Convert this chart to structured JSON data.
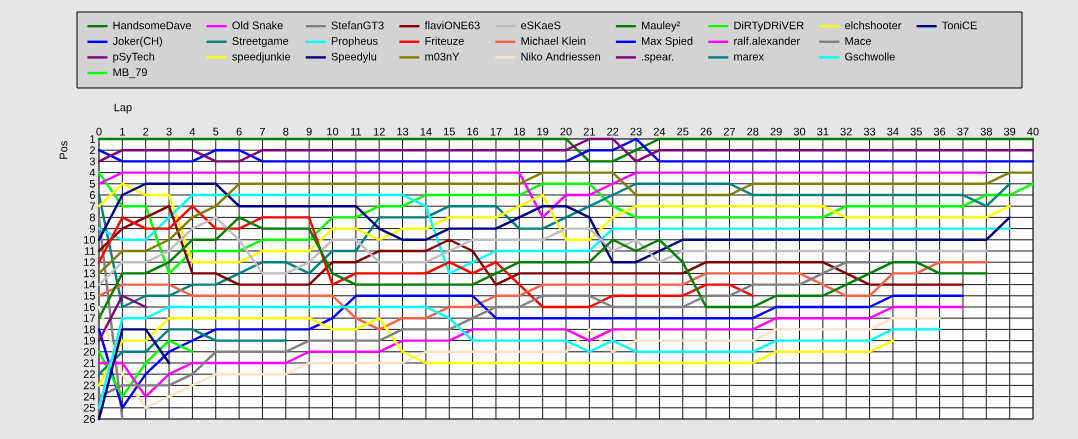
{
  "chart_data": {
    "type": "line",
    "xlabel": "Lap",
    "ylabel": "Pos",
    "x": [
      0,
      1,
      2,
      3,
      4,
      5,
      6,
      7,
      8,
      9,
      10,
      11,
      12,
      13,
      14,
      15,
      16,
      17,
      18,
      19,
      20,
      21,
      22,
      23,
      24,
      25,
      26,
      27,
      28,
      29,
      30,
      31,
      32,
      33,
      34,
      35,
      36,
      37,
      38,
      39,
      40
    ],
    "xlim": [
      0,
      40
    ],
    "ylim": [
      26,
      1
    ],
    "xticks": [
      0,
      1,
      2,
      3,
      4,
      5,
      6,
      7,
      8,
      9,
      10,
      11,
      12,
      13,
      14,
      15,
      16,
      17,
      18,
      19,
      20,
      21,
      22,
      23,
      24,
      25,
      26,
      27,
      28,
      29,
      30,
      31,
      32,
      33,
      34,
      35,
      36,
      37,
      38,
      39,
      40
    ],
    "yticks": [
      1,
      2,
      3,
      4,
      5,
      6,
      7,
      8,
      9,
      10,
      11,
      12,
      13,
      14,
      15,
      16,
      17,
      18,
      19,
      20,
      21,
      22,
      23,
      24,
      25,
      26
    ],
    "grid": true,
    "legend": "top",
    "series": [
      {
        "name": "HandsomeDave",
        "color": "#008000",
        "values": [
          1,
          1,
          1,
          1,
          1,
          1,
          1,
          1,
          1,
          1,
          1,
          1,
          1,
          1,
          1,
          1,
          1,
          1,
          1,
          1,
          1,
          3,
          3,
          2,
          1,
          1,
          1,
          1,
          1,
          1,
          1,
          1,
          1,
          1,
          1,
          1,
          1,
          1,
          1,
          1,
          1
        ]
      },
      {
        "name": "Joker(CH)",
        "color": "#0000ff",
        "values": [
          2,
          3,
          3,
          3,
          3,
          2,
          2,
          3,
          3,
          3,
          3,
          3,
          3,
          3,
          3,
          3,
          3,
          3,
          3,
          3,
          3,
          2,
          2,
          1,
          3,
          3,
          3,
          3,
          3,
          3,
          3,
          3,
          3,
          3,
          3,
          3,
          3,
          3,
          3,
          3,
          3
        ]
      },
      {
        "name": "pSyTech",
        "color": "#800080",
        "values": [
          3,
          2,
          2,
          2,
          2,
          3,
          3,
          2,
          2,
          2,
          2,
          2,
          2,
          2,
          2,
          2,
          2,
          2,
          2,
          2,
          2,
          1,
          1,
          3,
          2,
          2,
          2,
          2,
          2,
          2,
          2,
          2,
          2,
          2,
          2,
          2,
          2,
          2,
          2,
          2,
          2
        ]
      },
      {
        "name": "MB_79",
        "color": "#00ff00",
        "values": [
          4,
          7,
          7,
          13,
          11,
          11,
          11,
          10,
          10,
          10,
          8,
          8,
          7,
          7,
          6,
          6,
          6,
          6,
          6,
          5,
          5,
          5,
          7,
          8,
          8,
          8,
          8,
          8,
          8,
          8,
          8,
          8,
          7,
          7,
          7,
          7,
          7,
          7,
          6,
          6,
          5
        ]
      },
      {
        "name": "Old Snake",
        "color": "#ff00ff",
        "values": [
          5,
          4,
          4,
          4,
          4,
          4,
          4,
          4,
          4,
          4,
          4,
          4,
          4,
          4,
          4,
          4,
          4,
          4,
          4,
          8,
          6,
          6,
          5,
          4,
          4,
          4,
          4,
          4,
          4,
          4,
          4,
          4,
          4,
          4,
          4,
          4,
          4,
          4,
          4,
          null,
          null
        ]
      },
      {
        "name": "Streetgame",
        "color": "#008080",
        "values": [
          6,
          16,
          15,
          15,
          14,
          14,
          13,
          12,
          12,
          13,
          11,
          11,
          8,
          8,
          8,
          7,
          7,
          7,
          9,
          9,
          8,
          7,
          6,
          5,
          5,
          5,
          5,
          5,
          6,
          6,
          6,
          6,
          6,
          6,
          6,
          6,
          6,
          6,
          7,
          5,
          null
        ]
      },
      {
        "name": "speedjunkie",
        "color": "#ffff00",
        "values": [
          7,
          5,
          6,
          6,
          12,
          12,
          12,
          11,
          11,
          11,
          9,
          9,
          10,
          9,
          9,
          8,
          8,
          8,
          7,
          6,
          10,
          10,
          8,
          7,
          7,
          7,
          7,
          7,
          7,
          7,
          7,
          7,
          8,
          8,
          8,
          8,
          8,
          8,
          8,
          7,
          null
        ]
      },
      {
        "name": "StefanGT3",
        "color": "#808080",
        "values": [
          8,
          26,
          null,
          null,
          null,
          null,
          null,
          null,
          null,
          null,
          null,
          null,
          null,
          null,
          null,
          null,
          null,
          null,
          null,
          null,
          null,
          null,
          null,
          null,
          null,
          null,
          null,
          null,
          null,
          null,
          null,
          null,
          null,
          null,
          null,
          null,
          null,
          null,
          null,
          null,
          null
        ]
      },
      {
        "name": "Propheus",
        "color": "#00ffff",
        "values": [
          9,
          10,
          10,
          8,
          6,
          6,
          6,
          6,
          6,
          6,
          6,
          6,
          6,
          6,
          7,
          13,
          12,
          11,
          11,
          11,
          11,
          11,
          9,
          9,
          9,
          9,
          9,
          9,
          9,
          9,
          9,
          9,
          9,
          9,
          9,
          9,
          9,
          9,
          9,
          9,
          null
        ]
      },
      {
        "name": "Speedylu",
        "color": "#000080",
        "values": [
          10,
          6,
          5,
          5,
          5,
          5,
          7,
          7,
          7,
          7,
          7,
          7,
          9,
          10,
          10,
          9,
          9,
          9,
          8,
          7,
          7,
          8,
          12,
          12,
          11,
          10,
          10,
          10,
          10,
          10,
          10,
          10,
          10,
          10,
          10,
          10,
          10,
          10,
          10,
          8,
          null
        ]
      },
      {
        "name": "flaviONE63",
        "color": "#800000",
        "values": [
          11,
          9,
          8,
          7,
          13,
          13,
          14,
          14,
          14,
          14,
          12,
          12,
          11,
          11,
          11,
          10,
          11,
          14,
          13,
          13,
          13,
          13,
          13,
          13,
          13,
          13,
          12,
          12,
          12,
          12,
          12,
          12,
          13,
          14,
          14,
          14,
          14,
          14,
          null,
          null,
          null
        ]
      },
      {
        "name": "Friteuze",
        "color": "#ff0000",
        "values": [
          12,
          8,
          9,
          9,
          7,
          9,
          9,
          8,
          8,
          8,
          14,
          13,
          13,
          13,
          13,
          12,
          13,
          12,
          14,
          16,
          16,
          16,
          15,
          15,
          15,
          15,
          14,
          14,
          15,
          null,
          null,
          null,
          null,
          null,
          null,
          null,
          null,
          null,
          null,
          null,
          null
        ]
      },
      {
        "name": "m03nY",
        "color": "#808000",
        "values": [
          13,
          11,
          11,
          10,
          8,
          7,
          5,
          5,
          5,
          5,
          5,
          5,
          5,
          5,
          5,
          5,
          5,
          5,
          5,
          4,
          4,
          4,
          4,
          6,
          6,
          6,
          6,
          6,
          5,
          5,
          5,
          5,
          5,
          5,
          5,
          5,
          5,
          5,
          5,
          4,
          4
        ]
      },
      {
        "name": "eSKaeS",
        "color": "#c0c0c0",
        "values": [
          14,
          12,
          12,
          11,
          9,
          8,
          10,
          13,
          13,
          12,
          10,
          10,
          12,
          12,
          12,
          11,
          10,
          10,
          10,
          10,
          9,
          9,
          11,
          10,
          12,
          11,
          11,
          11,
          11,
          11,
          11,
          11,
          11,
          11,
          11,
          11,
          11,
          11,
          11,
          null,
          null
        ]
      },
      {
        "name": "Michael Klein",
        "color": "#ff6347",
        "values": [
          15,
          14,
          14,
          14,
          15,
          15,
          15,
          15,
          15,
          15,
          15,
          17,
          18,
          17,
          17,
          16,
          16,
          15,
          15,
          14,
          14,
          14,
          14,
          14,
          14,
          14,
          13,
          13,
          13,
          13,
          13,
          14,
          15,
          15,
          13,
          13,
          12,
          12,
          12,
          null,
          null
        ]
      },
      {
        "name": "Niko Andriessen",
        "color": "#ffe4c4",
        "values": [
          16,
          22,
          25,
          24,
          23,
          22,
          22,
          22,
          22,
          21,
          21,
          21,
          21,
          21,
          20,
          20,
          20,
          20,
          20,
          20,
          20,
          18,
          20,
          19,
          19,
          19,
          19,
          19,
          19,
          18,
          18,
          18,
          18,
          18,
          17,
          17,
          17,
          null,
          null,
          null,
          null
        ]
      },
      {
        "name": "Mauley²",
        "color": "#008000",
        "values": [
          17,
          13,
          13,
          12,
          10,
          10,
          8,
          9,
          9,
          9,
          13,
          14,
          14,
          14,
          14,
          14,
          14,
          13,
          12,
          12,
          12,
          12,
          10,
          11,
          10,
          12,
          16,
          16,
          16,
          15,
          15,
          15,
          14,
          13,
          12,
          12,
          13,
          13,
          13,
          null,
          null
        ]
      },
      {
        "name": "Max Spied",
        "color": "#0000ff",
        "values": [
          18,
          25,
          22,
          20,
          19,
          18,
          18,
          18,
          18,
          18,
          17,
          15,
          15,
          15,
          15,
          15,
          15,
          17,
          17,
          17,
          17,
          17,
          17,
          17,
          17,
          17,
          17,
          17,
          17,
          16,
          16,
          16,
          16,
          16,
          15,
          15,
          15,
          15,
          null,
          null,
          null
        ]
      },
      {
        "name": ".spear.",
        "color": "#800080",
        "values": [
          19,
          15,
          16,
          null,
          null,
          null,
          null,
          null,
          null,
          null,
          null,
          null,
          null,
          null,
          null,
          null,
          null,
          null,
          null,
          null,
          null,
          null,
          null,
          null,
          null,
          null,
          null,
          null,
          null,
          null,
          null,
          null,
          null,
          null,
          null,
          null,
          null,
          null,
          null,
          null,
          null
        ]
      },
      {
        "name": "DiRTyDRiVER",
        "color": "#00ff00",
        "values": [
          20,
          24,
          21,
          19,
          20,
          null,
          null,
          null,
          null,
          null,
          null,
          null,
          null,
          null,
          null,
          null,
          null,
          null,
          null,
          null,
          null,
          null,
          null,
          null,
          null,
          null,
          null,
          null,
          null,
          null,
          null,
          null,
          null,
          null,
          null,
          null,
          null,
          null,
          null,
          null,
          null
        ]
      },
      {
        "name": "ralf.alexander",
        "color": "#ff00ff",
        "values": [
          21,
          21,
          24,
          22,
          21,
          21,
          21,
          21,
          21,
          20,
          20,
          20,
          20,
          19,
          19,
          19,
          18,
          18,
          18,
          18,
          18,
          19,
          18,
          18,
          18,
          18,
          18,
          18,
          18,
          17,
          17,
          17,
          17,
          17,
          16,
          16,
          16,
          16,
          null,
          null,
          null
        ]
      },
      {
        "name": "marex",
        "color": "#008080",
        "values": [
          22,
          20,
          20,
          18,
          18,
          19,
          19,
          19,
          19,
          null,
          null,
          null,
          null,
          null,
          null,
          null,
          null,
          null,
          null,
          null,
          null,
          null,
          null,
          null,
          null,
          null,
          null,
          null,
          null,
          null,
          null,
          null,
          null,
          null,
          null,
          null,
          null,
          null,
          null,
          null,
          null
        ]
      },
      {
        "name": "elchshooter",
        "color": "#ffff00",
        "values": [
          23,
          19,
          19,
          17,
          17,
          17,
          17,
          17,
          17,
          17,
          18,
          18,
          17,
          20,
          21,
          21,
          21,
          21,
          21,
          21,
          21,
          21,
          21,
          21,
          21,
          21,
          21,
          21,
          21,
          20,
          20,
          20,
          20,
          20,
          19,
          null,
          null,
          null,
          null,
          null,
          null
        ]
      },
      {
        "name": "Mace",
        "color": "#808080",
        "values": [
          24,
          23,
          23,
          23,
          22,
          20,
          20,
          20,
          20,
          19,
          19,
          19,
          19,
          18,
          18,
          18,
          17,
          16,
          16,
          15,
          15,
          15,
          16,
          16,
          16,
          16,
          15,
          15,
          14,
          14,
          14,
          13,
          12,
          12,
          null,
          null,
          null,
          null,
          null,
          null,
          null
        ]
      },
      {
        "name": "Gschwolle",
        "color": "#00ffff",
        "values": [
          25,
          17,
          17,
          16,
          16,
          16,
          16,
          16,
          16,
          16,
          16,
          16,
          16,
          16,
          16,
          17,
          19,
          19,
          19,
          19,
          19,
          20,
          19,
          20,
          20,
          20,
          20,
          20,
          20,
          19,
          19,
          19,
          19,
          19,
          18,
          18,
          18,
          null,
          null,
          null,
          null
        ]
      },
      {
        "name": "ToniCE",
        "color": "#000080",
        "values": [
          26,
          18,
          18,
          21,
          null,
          null,
          null,
          null,
          null,
          null,
          null,
          null,
          null,
          null,
          null,
          null,
          null,
          null,
          null,
          null,
          null,
          null,
          null,
          null,
          null,
          null,
          null,
          null,
          null,
          null,
          null,
          null,
          null,
          null,
          null,
          null,
          null,
          null,
          null,
          null,
          null
        ]
      }
    ]
  }
}
